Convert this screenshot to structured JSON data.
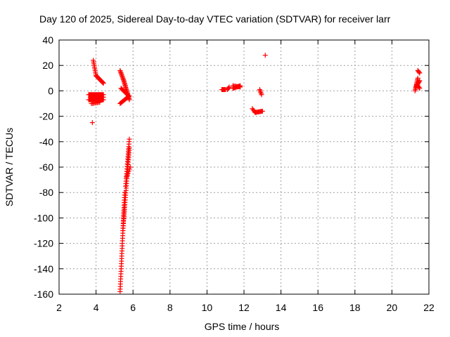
{
  "chart_data": {
    "type": "scatter",
    "title": "Day 120 of 2025, Sidereal Day-to-day VTEC variation (SDTVAR) for receiver larr",
    "xlabel": "GPS time / hours",
    "ylabel": "SDTVAR / TECUs",
    "xlim": [
      2,
      22
    ],
    "ylim": [
      -160,
      40
    ],
    "xticks": [
      "2",
      "4",
      "6",
      "8",
      "10",
      "12",
      "14",
      "16",
      "18",
      "20",
      "22"
    ],
    "yticks": [
      "40",
      "20",
      "0",
      "-20",
      "-40",
      "-60",
      "-80",
      "-100",
      "-120",
      "-140",
      "-160"
    ],
    "grid": true,
    "marker": "+",
    "marker_color": "#ff0000",
    "series": [
      {
        "name": "SDTVAR",
        "segments": [
          {
            "x0": 3.85,
            "x1": 4.0,
            "y0": 24,
            "y1": 12,
            "n": 10
          },
          {
            "x0": 4.0,
            "x1": 4.4,
            "y0": 12,
            "y1": 6,
            "n": 20
          },
          {
            "x0": 3.6,
            "x1": 4.4,
            "y0": -3,
            "y1": -3,
            "n": 22
          },
          {
            "x0": 3.6,
            "x1": 4.4,
            "y0": -7,
            "y1": -7,
            "n": 22
          },
          {
            "x0": 3.7,
            "x1": 4.4,
            "y0": -5,
            "y1": -5,
            "n": 18
          },
          {
            "x0": 3.75,
            "x1": 4.2,
            "y0": -10,
            "y1": -9,
            "n": 8
          },
          {
            "x0": 3.8,
            "x1": 3.8,
            "y0": -25,
            "y1": -25,
            "n": 1
          },
          {
            "x0": 5.3,
            "x1": 5.5,
            "y0": 16,
            "y1": 8,
            "n": 10
          },
          {
            "x0": 5.5,
            "x1": 5.8,
            "y0": 8,
            "y1": -7,
            "n": 18
          },
          {
            "x0": 5.3,
            "x1": 5.8,
            "y0": -10,
            "y1": -4,
            "n": 14
          },
          {
            "x0": 5.35,
            "x1": 5.7,
            "y0": 2,
            "y1": -3,
            "n": 10
          },
          {
            "x0": 5.3,
            "x1": 5.55,
            "y0": -158,
            "y1": -80,
            "n": 40
          },
          {
            "x0": 5.45,
            "x1": 5.8,
            "y0": -110,
            "y1": -45,
            "n": 36
          },
          {
            "x0": 5.6,
            "x1": 5.8,
            "y0": -75,
            "y1": -38,
            "n": 20
          },
          {
            "x0": 5.65,
            "x1": 5.85,
            "y0": -68,
            "y1": -60,
            "n": 6
          },
          {
            "x0": 10.8,
            "x1": 11.0,
            "y0": 1,
            "y1": 1,
            "n": 6
          },
          {
            "x0": 11.1,
            "x1": 11.2,
            "y0": 1,
            "y1": 3,
            "n": 4
          },
          {
            "x0": 11.4,
            "x1": 11.8,
            "y0": 2,
            "y1": 4,
            "n": 10
          },
          {
            "x0": 11.4,
            "x1": 11.8,
            "y0": 4,
            "y1": 3,
            "n": 8
          },
          {
            "x0": 12.45,
            "x1": 12.6,
            "y0": -14,
            "y1": -17,
            "n": 4
          },
          {
            "x0": 12.6,
            "x1": 13.0,
            "y0": -17,
            "y1": -16,
            "n": 10
          },
          {
            "x0": 12.85,
            "x1": 12.95,
            "y0": 1,
            "y1": -3,
            "n": 5
          },
          {
            "x0": 13.15,
            "x1": 13.15,
            "y0": 28,
            "y1": 28,
            "n": 1
          },
          {
            "x0": 21.25,
            "x1": 21.4,
            "y0": 0,
            "y1": 10,
            "n": 10
          },
          {
            "x0": 21.3,
            "x1": 21.5,
            "y0": 3,
            "y1": 8,
            "n": 8
          },
          {
            "x0": 21.4,
            "x1": 21.5,
            "y0": 16,
            "y1": 14,
            "n": 4
          },
          {
            "x0": 21.35,
            "x1": 21.5,
            "y0": 5,
            "y1": 2,
            "n": 5
          }
        ]
      }
    ]
  }
}
